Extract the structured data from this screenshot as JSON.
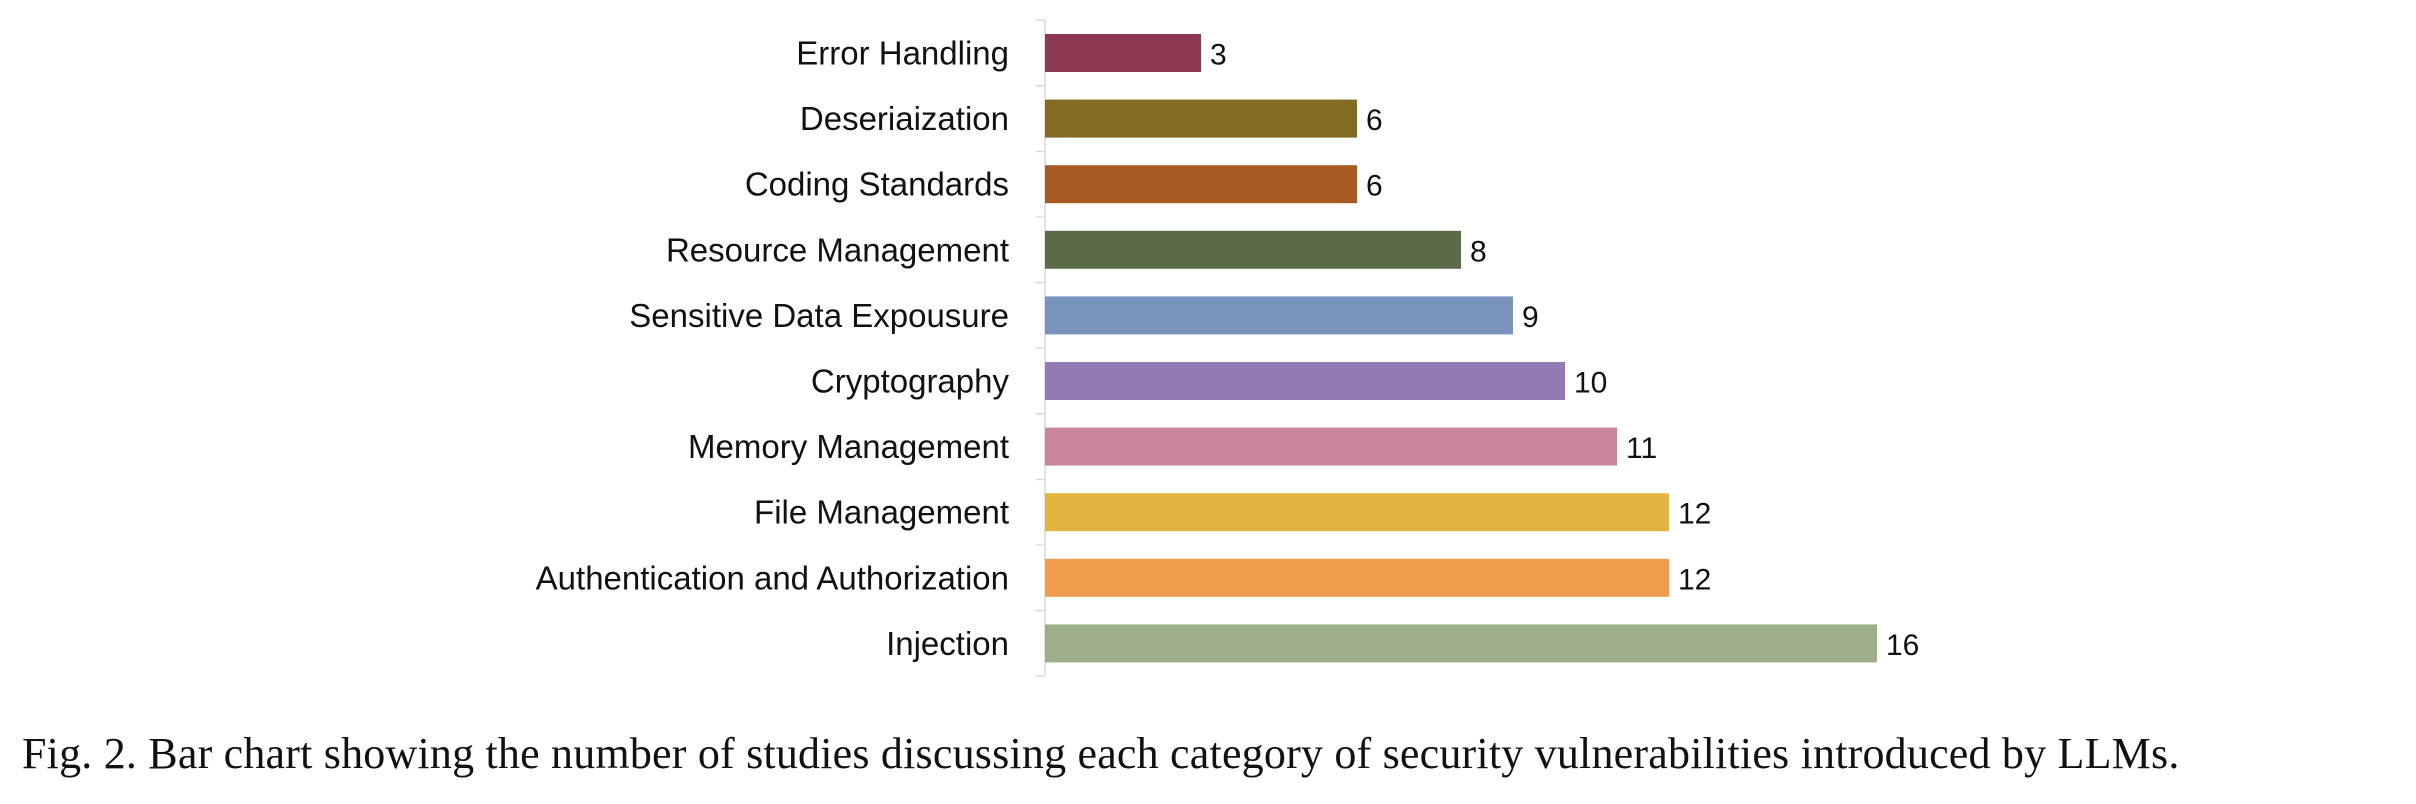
{
  "caption": "Fig. 2.  Bar chart showing the number of studies discussing each category of security vulnerabilities introduced by LLMs.",
  "chart_data": {
    "type": "bar",
    "orientation": "horizontal",
    "title": "",
    "xlabel": "",
    "ylabel": "",
    "xlim": [
      0,
      16
    ],
    "grid": false,
    "legend": "none",
    "data_labels": true,
    "categories": [
      "Error Handling",
      "Deseriaization",
      "Coding Standards",
      "Resource Management",
      "Sensitive Data Expousure",
      "Cryptography",
      "Memory Management",
      "File Management",
      "Authentication and Authorization",
      "Injection"
    ],
    "values": [
      3,
      6,
      6,
      8,
      9,
      10,
      11,
      12,
      12,
      16
    ],
    "colors": [
      "#8b3a52",
      "#836b21",
      "#a65a22",
      "#5a6b47",
      "#7894bc",
      "#927ab5",
      "#c98599",
      "#e2b541",
      "#f09c4d",
      "#9caf8a"
    ]
  }
}
